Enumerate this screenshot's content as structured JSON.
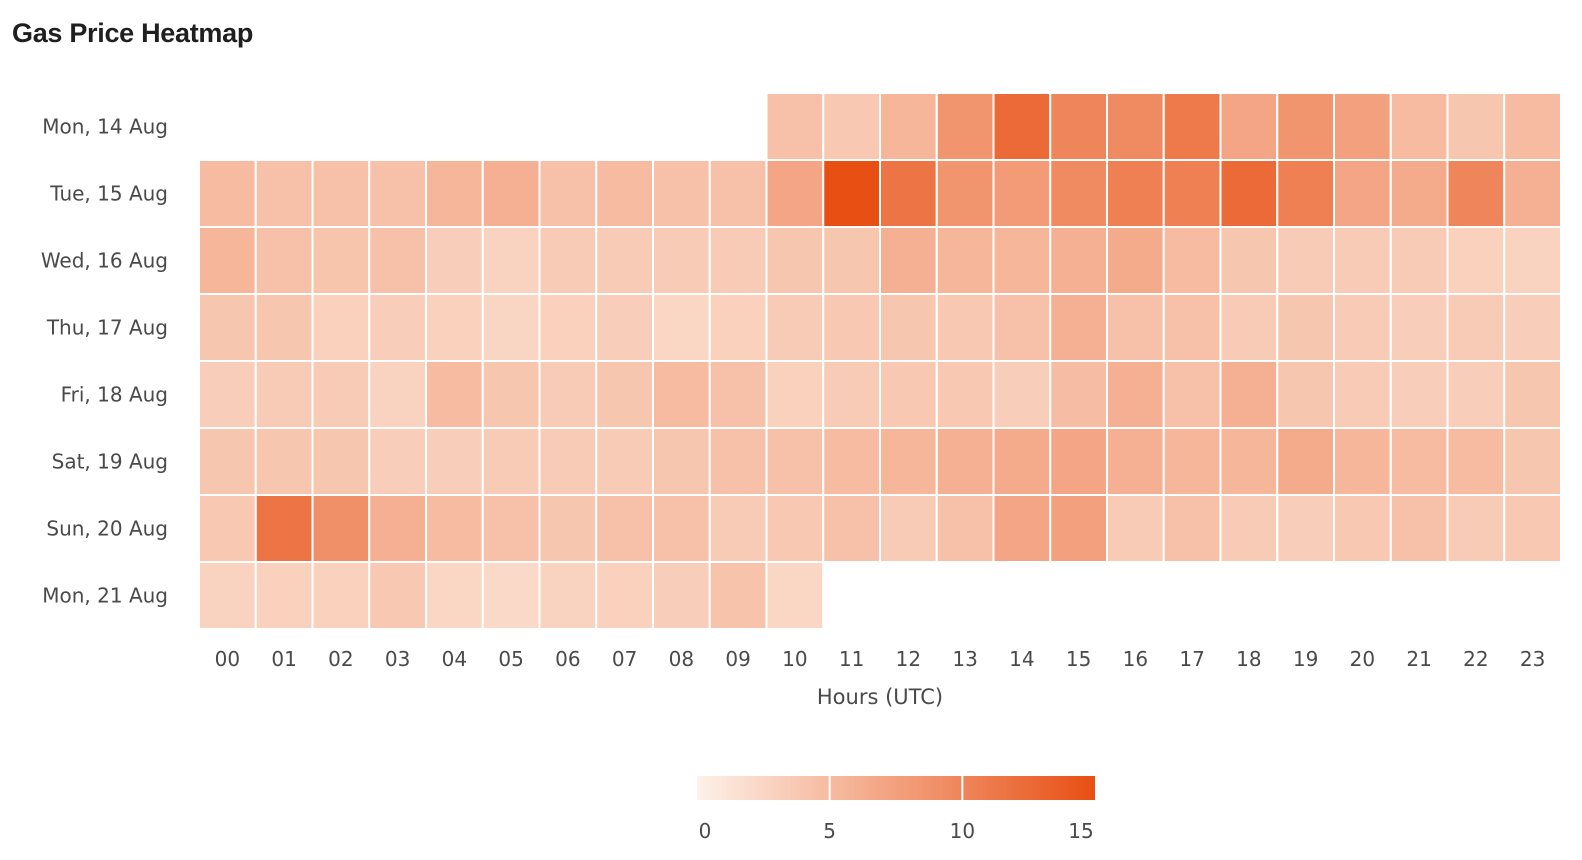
{
  "title": "Gas Price Heatmap",
  "chart_data": {
    "type": "heatmap",
    "title": "Gas Price Heatmap",
    "xlabel": "Hours (UTC)",
    "ylabel": "",
    "x_categories": [
      "00",
      "01",
      "02",
      "03",
      "04",
      "05",
      "06",
      "07",
      "08",
      "09",
      "10",
      "11",
      "12",
      "13",
      "14",
      "15",
      "16",
      "17",
      "18",
      "19",
      "20",
      "21",
      "22",
      "23"
    ],
    "y_categories": [
      "Mon, 14 Aug",
      "Tue, 15 Aug",
      "Wed, 16 Aug",
      "Thu, 17 Aug",
      "Fri, 18 Aug",
      "Sat, 19 Aug",
      "Sun, 20 Aug",
      "Mon, 21 Aug"
    ],
    "values": [
      [
        null,
        null,
        null,
        null,
        null,
        null,
        null,
        null,
        null,
        null,
        4.5,
        3.8,
        5.5,
        8.5,
        12.5,
        10.0,
        9.5,
        11.0,
        7.0,
        8.5,
        7.5,
        5.0,
        4.0,
        5.0
      ],
      [
        5.0,
        4.5,
        4.5,
        4.5,
        5.5,
        6.0,
        4.5,
        5.0,
        4.5,
        4.5,
        7.0,
        15.0,
        11.5,
        8.5,
        8.0,
        9.5,
        10.5,
        10.5,
        12.5,
        10.5,
        7.0,
        6.5,
        10.0,
        6.0
      ],
      [
        5.5,
        4.5,
        4.2,
        4.5,
        3.3,
        2.8,
        3.5,
        3.5,
        3.5,
        3.5,
        4.0,
        4.0,
        6.0,
        5.5,
        5.5,
        6.0,
        6.5,
        5.0,
        4.0,
        3.5,
        3.5,
        3.5,
        3.0,
        2.8
      ],
      [
        4.0,
        4.0,
        3.0,
        3.3,
        3.0,
        2.6,
        3.0,
        3.3,
        2.5,
        3.0,
        3.5,
        3.8,
        4.0,
        3.8,
        4.5,
        6.0,
        4.5,
        4.5,
        3.5,
        4.0,
        3.5,
        3.3,
        3.5,
        3.3
      ],
      [
        3.3,
        3.5,
        3.5,
        2.8,
        5.0,
        4.0,
        3.5,
        4.0,
        5.0,
        4.5,
        3.0,
        3.5,
        3.8,
        3.8,
        3.3,
        4.8,
        6.0,
        4.5,
        6.0,
        4.0,
        3.5,
        3.3,
        3.3,
        4.0
      ],
      [
        4.0,
        4.0,
        4.0,
        3.3,
        3.3,
        3.5,
        3.5,
        3.5,
        4.0,
        4.5,
        4.5,
        5.0,
        5.5,
        6.0,
        6.5,
        7.0,
        6.0,
        5.5,
        5.5,
        6.5,
        5.5,
        5.0,
        5.0,
        4.0
      ],
      [
        3.8,
        11.5,
        9.0,
        6.0,
        5.0,
        4.5,
        4.0,
        4.5,
        4.5,
        3.5,
        3.8,
        4.5,
        3.5,
        4.5,
        7.0,
        7.5,
        3.5,
        4.5,
        3.5,
        3.3,
        3.8,
        4.5,
        3.5,
        3.8
      ],
      [
        2.8,
        3.0,
        3.0,
        3.8,
        2.5,
        2.2,
        2.8,
        3.0,
        3.3,
        4.3,
        2.5,
        null,
        null,
        null,
        null,
        null,
        null,
        null,
        null,
        null,
        null,
        null,
        null,
        null
      ]
    ],
    "color_scale": {
      "min": 0,
      "max": 15,
      "ticks": [
        "0",
        "5",
        "10",
        "15"
      ],
      "color_min": "#fdf1e8",
      "color_max": "#e84f13"
    },
    "grid": false,
    "legend_placement": "bottom-center"
  }
}
